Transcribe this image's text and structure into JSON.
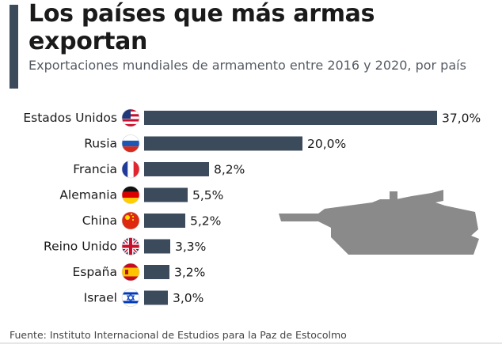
{
  "header": {
    "title": "Los países que más armas exportan",
    "subtitle": "Exportaciones mundiales de armamento entre 2016 y 2020, por país"
  },
  "footer": {
    "source": "Fuente: Instituto Internacional de Estudios para la Paz de Estocolmo"
  },
  "colors": {
    "accent": "#3c4b5c",
    "bar": "#3c4b5c",
    "tank": "#888888"
  },
  "chart_data": {
    "type": "bar",
    "orientation": "horizontal",
    "title": "Los países que más armas exportan",
    "subtitle": "Exportaciones mundiales de armamento entre 2016 y 2020, por país",
    "categories": [
      "Estados Unidos",
      "Rusia",
      "Francia",
      "Alemania",
      "China",
      "Reino Unido",
      "España",
      "Israel"
    ],
    "values": [
      37.0,
      20.0,
      8.2,
      5.5,
      5.2,
      3.3,
      3.2,
      3.0
    ],
    "value_labels": [
      "37,0%",
      "20,0%",
      "8,2%",
      "5,5%",
      "5,2%",
      "3,3%",
      "3,2%",
      "3,0%"
    ],
    "flags": [
      "flag-usa-icon",
      "flag-russia-icon",
      "flag-france-icon",
      "flag-germany-icon",
      "flag-china-icon",
      "flag-uk-icon",
      "flag-spain-icon",
      "flag-israel-icon"
    ],
    "unit": "%",
    "xlim": [
      0,
      37.0
    ],
    "grid": false,
    "legend": "none"
  }
}
